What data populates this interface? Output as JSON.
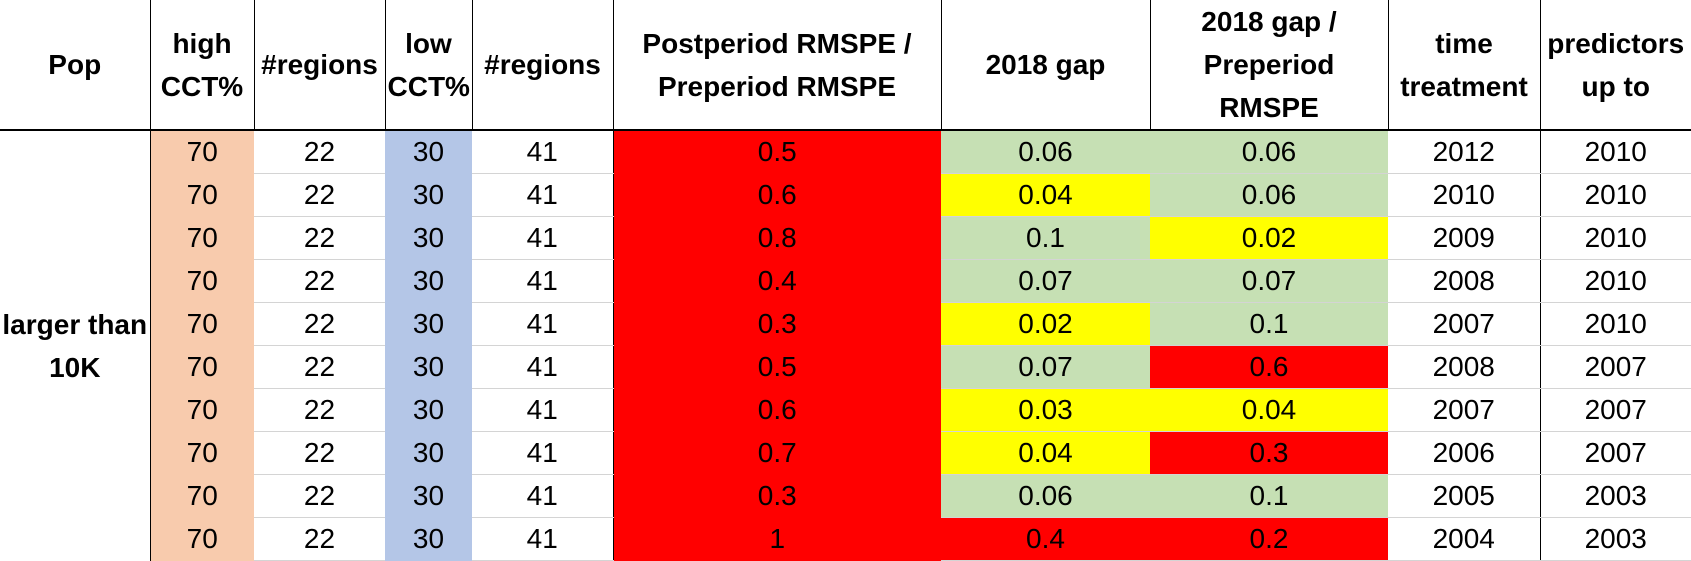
{
  "headers": [
    "Pop",
    "high CCT%",
    "#regions",
    "low CCT%",
    "#regions",
    "Postperiod  RMSPE  / Preperiod RMSPE",
    "2018 gap",
    "2018 gap / Preperiod RMSPE",
    "time treatment",
    "predictors up to"
  ],
  "pop_label": "larger than 10K",
  "colors": {
    "salmon": "#f8cbad",
    "blue": "#b4c6e7",
    "red": "#ff0000",
    "green": "#c6e0b4",
    "yellow": "#ffff00"
  },
  "rows": [
    {
      "high": "70",
      "n_high": "22",
      "low": "30",
      "n_low": "41",
      "ratio": "0.5",
      "gap": "0.06",
      "gap_color": "green",
      "gap_ratio": "0.06",
      "gap_ratio_color": "green",
      "time": "2012",
      "pred": "2010"
    },
    {
      "high": "70",
      "n_high": "22",
      "low": "30",
      "n_low": "41",
      "ratio": "0.6",
      "gap": "0.04",
      "gap_color": "yellow",
      "gap_ratio": "0.06",
      "gap_ratio_color": "green",
      "time": "2010",
      "pred": "2010"
    },
    {
      "high": "70",
      "n_high": "22",
      "low": "30",
      "n_low": "41",
      "ratio": "0.8",
      "gap": "0.1",
      "gap_color": "green",
      "gap_ratio": "0.02",
      "gap_ratio_color": "yellow",
      "time": "2009",
      "pred": "2010"
    },
    {
      "high": "70",
      "n_high": "22",
      "low": "30",
      "n_low": "41",
      "ratio": "0.4",
      "gap": "0.07",
      "gap_color": "green",
      "gap_ratio": "0.07",
      "gap_ratio_color": "green",
      "time": "2008",
      "pred": "2010"
    },
    {
      "high": "70",
      "n_high": "22",
      "low": "30",
      "n_low": "41",
      "ratio": "0.3",
      "gap": "0.02",
      "gap_color": "yellow",
      "gap_ratio": "0.1",
      "gap_ratio_color": "green",
      "time": "2007",
      "pred": "2010"
    },
    {
      "high": "70",
      "n_high": "22",
      "low": "30",
      "n_low": "41",
      "ratio": "0.5",
      "gap": "0.07",
      "gap_color": "green",
      "gap_ratio": "0.6",
      "gap_ratio_color": "red",
      "time": "2008",
      "pred": "2007"
    },
    {
      "high": "70",
      "n_high": "22",
      "low": "30",
      "n_low": "41",
      "ratio": "0.6",
      "gap": "0.03",
      "gap_color": "yellow",
      "gap_ratio": "0.04",
      "gap_ratio_color": "yellow",
      "time": "2007",
      "pred": "2007"
    },
    {
      "high": "70",
      "n_high": "22",
      "low": "30",
      "n_low": "41",
      "ratio": "0.7",
      "gap": "0.04",
      "gap_color": "yellow",
      "gap_ratio": "0.3",
      "gap_ratio_color": "red",
      "time": "2006",
      "pred": "2007"
    },
    {
      "high": "70",
      "n_high": "22",
      "low": "30",
      "n_low": "41",
      "ratio": "0.3",
      "gap": "0.06",
      "gap_color": "green",
      "gap_ratio": "0.1",
      "gap_ratio_color": "green",
      "time": "2005",
      "pred": "2003"
    },
    {
      "high": "70",
      "n_high": "22",
      "low": "30",
      "n_low": "41",
      "ratio": "1",
      "gap": "0.4",
      "gap_color": "red",
      "gap_ratio": "0.2",
      "gap_ratio_color": "red",
      "time": "2004",
      "pred": "2003"
    }
  ]
}
